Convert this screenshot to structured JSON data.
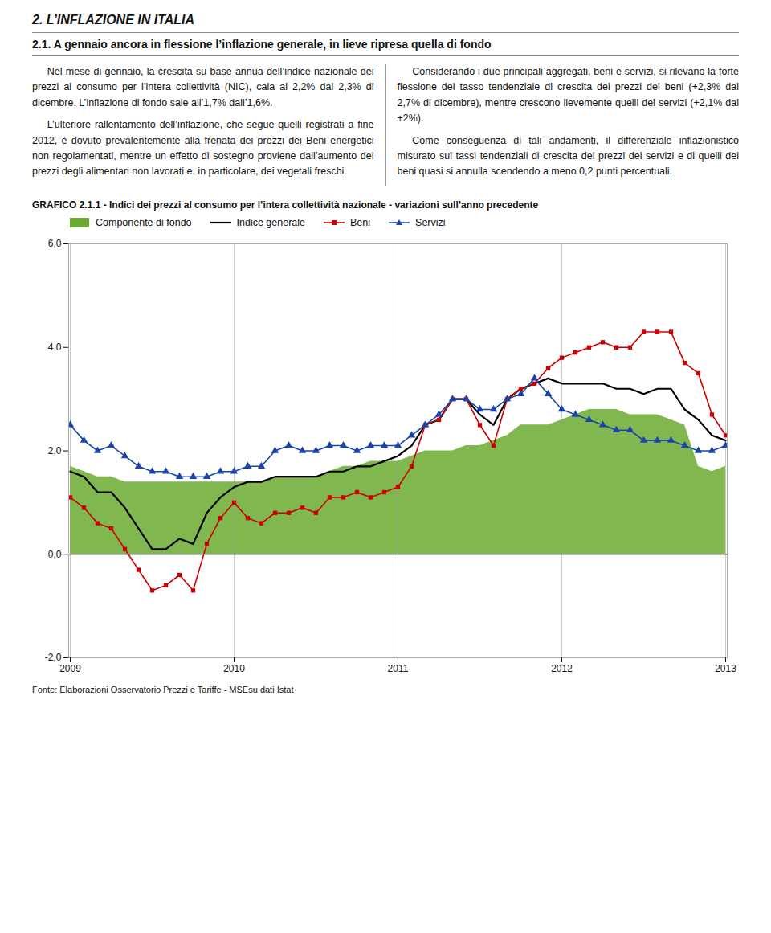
{
  "chart_data": {
    "type": "line",
    "title": "GRAFICO 2.1.1 - Indici dei prezzi al consumo per l’intera collettività nazionale - variazioni sull’anno precedente",
    "annotations": [
      "2. L’INFLAZIONE IN ITALIA",
      "2.1. A gennaio ancora in flessione l’inflazione generale, in lieve ripresa quella di fondo",
      "Nel mese di gennaio, la crescita su base annua dell’indice nazionale dei prezzi al consumo per l’intera collettività (NIC), cala al 2,2% dal 2,3% di dicembre. L’inflazione di fondo sale all’1,7% dall’1,6%.",
      "L’ulteriore rallentamento dell’inflazione, che segue quelli registrati a fine 2012, è dovuto prevalentemente alla frenata dei prezzi dei Beni energetici non regolamentati, mentre un effetto di sostegno proviene dall’aumento dei prezzi degli alimentari non lavorati e, in particolare, dei vegetali freschi.",
      "Considerando i due principali aggregati, beni e servizi, si rilevano la forte flessione del tasso tendenziale di crescita dei prezzi dei beni (+2,3% dal 2,7% di dicembre), mentre crescono lievemente quelli dei servizi (+2,1% dal +2%).",
      "Come conseguenza di tali andamenti, il differenziale inflazionistico misurato sui tassi tendenziali di crescita dei prezzi dei servizi e di quelli dei beni quasi si annulla scendendo a meno 0,2 punti percentuali."
    ],
    "caption": "Fonte: Elaborazioni Osservatorio Prezzi e Tariffe - MSEsu dati Istat",
    "categories": [
      "2009",
      null,
      null,
      null,
      null,
      null,
      null,
      null,
      null,
      null,
      null,
      null,
      "2010",
      null,
      null,
      null,
      null,
      null,
      null,
      null,
      null,
      null,
      null,
      null,
      "2011",
      null,
      null,
      null,
      null,
      null,
      null,
      null,
      null,
      null,
      null,
      null,
      "2012",
      null,
      null,
      null,
      null,
      null,
      null,
      null,
      null,
      null,
      null,
      null,
      "2013"
    ],
    "series": [
      {
        "name": "Componente di fondo",
        "type": "area",
        "color": "#6aaa30",
        "values": [
          1.7,
          1.6,
          1.5,
          1.5,
          1.4,
          1.4,
          1.4,
          1.4,
          1.4,
          1.4,
          1.4,
          1.4,
          1.4,
          1.4,
          1.4,
          1.5,
          1.5,
          1.5,
          1.5,
          1.6,
          1.7,
          1.7,
          1.8,
          1.8,
          1.8,
          1.9,
          2.0,
          2.0,
          2.0,
          2.1,
          2.1,
          2.2,
          2.3,
          2.5,
          2.5,
          2.5,
          2.6,
          2.7,
          2.8,
          2.8,
          2.8,
          2.7,
          2.7,
          2.7,
          2.6,
          2.5,
          1.7,
          1.6,
          1.7
        ]
      },
      {
        "name": "Indice generale",
        "type": "line",
        "color": "#000000",
        "values": [
          1.6,
          1.5,
          1.2,
          1.2,
          0.9,
          0.5,
          0.1,
          0.1,
          0.3,
          0.2,
          0.8,
          1.1,
          1.3,
          1.4,
          1.4,
          1.5,
          1.5,
          1.5,
          1.5,
          1.6,
          1.6,
          1.7,
          1.7,
          1.8,
          1.9,
          2.1,
          2.5,
          2.6,
          3.0,
          3.0,
          2.7,
          2.5,
          3.0,
          3.2,
          3.3,
          3.4,
          3.3,
          3.3,
          3.3,
          3.3,
          3.2,
          3.2,
          3.1,
          3.2,
          3.2,
          2.8,
          2.6,
          2.3,
          2.2
        ]
      },
      {
        "name": "Beni",
        "type": "line",
        "color": "#cc0000",
        "marker": "square",
        "values": [
          1.1,
          0.9,
          0.6,
          0.5,
          0.1,
          -0.3,
          -0.7,
          -0.6,
          -0.4,
          -0.7,
          0.2,
          0.7,
          1.0,
          0.7,
          0.6,
          0.8,
          0.8,
          0.9,
          0.8,
          1.1,
          1.1,
          1.2,
          1.1,
          1.2,
          1.3,
          1.7,
          2.5,
          2.6,
          3.0,
          3.0,
          2.5,
          2.1,
          3.0,
          3.2,
          3.3,
          3.6,
          3.8,
          3.9,
          4.0,
          4.1,
          4.0,
          4.0,
          4.3,
          4.3,
          4.3,
          3.7,
          3.5,
          2.7,
          2.3
        ]
      },
      {
        "name": "Servizi",
        "type": "line",
        "color": "#1a44aa",
        "marker": "triangle",
        "values": [
          2.5,
          2.2,
          2.0,
          2.1,
          1.9,
          1.7,
          1.6,
          1.6,
          1.5,
          1.5,
          1.5,
          1.6,
          1.6,
          1.7,
          1.7,
          2.0,
          2.1,
          2.0,
          2.0,
          2.1,
          2.1,
          2.0,
          2.1,
          2.1,
          2.1,
          2.3,
          2.5,
          2.7,
          3.0,
          3.0,
          2.8,
          2.8,
          3.0,
          3.1,
          3.4,
          3.1,
          2.8,
          2.7,
          2.6,
          2.5,
          2.4,
          2.4,
          2.2,
          2.2,
          2.2,
          2.1,
          2.0,
          2.0,
          2.1
        ]
      }
    ],
    "ylim": [
      -2.0,
      6.0
    ],
    "yticks": [
      {
        "value": -2.0,
        "label": "-2,0"
      },
      {
        "value": 0.0,
        "label": "0,0"
      },
      {
        "value": 2.0,
        "label": "2,0"
      },
      {
        "value": 4.0,
        "label": "4,0"
      },
      {
        "value": 6.0,
        "label": "6,0"
      }
    ],
    "grid": true,
    "legend": "top"
  }
}
